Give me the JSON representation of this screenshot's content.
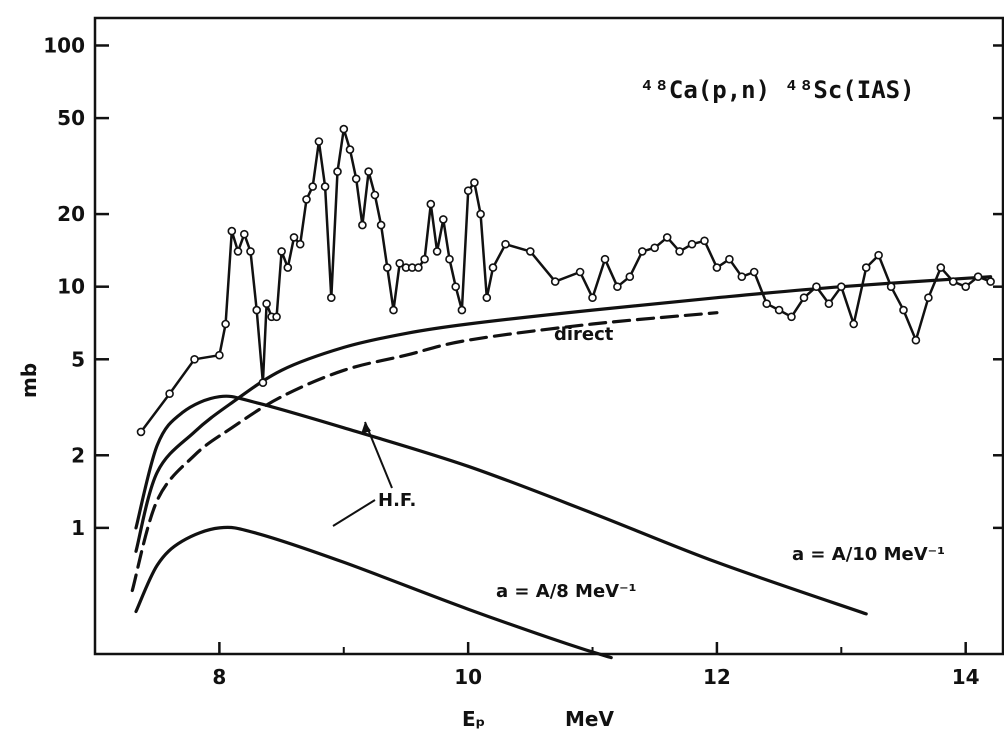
{
  "chart_data": {
    "type": "line",
    "title": "⁴⁸Ca(p,n) ⁴⁸Sc(IAS)",
    "xlabel": "Eₚ",
    "xunit": "MeV",
    "ylabel": "mb",
    "yscale": "log",
    "xlim": [
      7.0,
      14.3
    ],
    "ylim": [
      0.3,
      130
    ],
    "x_ticks": [
      8,
      10,
      12,
      14
    ],
    "x_tick_labels": [
      "8",
      "10",
      "12",
      "14"
    ],
    "y_ticks": [
      1,
      2,
      5,
      10,
      20,
      50,
      100
    ],
    "y_tick_labels": [
      "1",
      "2",
      "5",
      "10",
      "20",
      "50",
      "100"
    ],
    "grid": false,
    "annotations": {
      "direct": "direct",
      "hf": "H.F.",
      "a_upper": "a = A/10 MeV⁻¹",
      "a_lower": "a = A/8 MeV⁻¹"
    },
    "series": [
      {
        "style": "data-points",
        "points": [
          [
            7.37,
            2.5
          ],
          [
            7.6,
            3.6
          ],
          [
            7.8,
            5.0
          ],
          [
            8.0,
            5.2
          ],
          [
            8.05,
            7.0
          ],
          [
            8.1,
            17.0
          ],
          [
            8.15,
            14.0
          ],
          [
            8.2,
            16.5
          ],
          [
            8.25,
            14.0
          ],
          [
            8.3,
            8.0
          ],
          [
            8.35,
            4.0
          ],
          [
            8.38,
            8.5
          ],
          [
            8.42,
            7.5
          ],
          [
            8.46,
            7.5
          ],
          [
            8.5,
            14.0
          ],
          [
            8.55,
            12.0
          ],
          [
            8.6,
            16.0
          ],
          [
            8.65,
            15.0
          ],
          [
            8.7,
            23.0
          ],
          [
            8.75,
            26.0
          ],
          [
            8.8,
            40.0
          ],
          [
            8.85,
            26.0
          ],
          [
            8.9,
            9.0
          ],
          [
            8.95,
            30.0
          ],
          [
            9.0,
            45.0
          ],
          [
            9.05,
            37.0
          ],
          [
            9.1,
            28.0
          ],
          [
            9.15,
            18.0
          ],
          [
            9.2,
            30.0
          ],
          [
            9.25,
            24.0
          ],
          [
            9.3,
            18.0
          ],
          [
            9.35,
            12.0
          ],
          [
            9.4,
            8.0
          ],
          [
            9.45,
            12.5
          ],
          [
            9.5,
            12.0
          ],
          [
            9.55,
            12.0
          ],
          [
            9.6,
            12.0
          ],
          [
            9.65,
            13.0
          ],
          [
            9.7,
            22.0
          ],
          [
            9.75,
            14.0
          ],
          [
            9.8,
            19.0
          ],
          [
            9.85,
            13.0
          ],
          [
            9.9,
            10.0
          ],
          [
            9.95,
            8.0
          ],
          [
            10.0,
            25.0
          ],
          [
            10.05,
            27.0
          ],
          [
            10.1,
            20.0
          ],
          [
            10.15,
            9.0
          ],
          [
            10.2,
            12.0
          ],
          [
            10.3,
            15.0
          ],
          [
            10.5,
            14.0
          ],
          [
            10.7,
            10.5
          ],
          [
            10.9,
            11.5
          ],
          [
            11.0,
            9.0
          ],
          [
            11.1,
            13.0
          ],
          [
            11.2,
            10.0
          ],
          [
            11.3,
            11.0
          ],
          [
            11.4,
            14.0
          ],
          [
            11.5,
            14.5
          ],
          [
            11.6,
            16.0
          ],
          [
            11.7,
            14.0
          ],
          [
            11.8,
            15.0
          ],
          [
            11.9,
            15.5
          ],
          [
            12.0,
            12.0
          ],
          [
            12.1,
            13.0
          ],
          [
            12.2,
            11.0
          ],
          [
            12.3,
            11.5
          ],
          [
            12.4,
            8.5
          ],
          [
            12.5,
            8.0
          ],
          [
            12.6,
            7.5
          ],
          [
            12.7,
            9.0
          ],
          [
            12.8,
            10.0
          ],
          [
            12.9,
            8.5
          ],
          [
            13.0,
            10.0
          ],
          [
            13.1,
            7.0
          ],
          [
            13.2,
            12.0
          ],
          [
            13.3,
            13.5
          ],
          [
            13.4,
            10.0
          ],
          [
            13.5,
            8.0
          ],
          [
            13.6,
            6.0
          ],
          [
            13.7,
            9.0
          ],
          [
            13.8,
            12.0
          ],
          [
            13.9,
            10.5
          ],
          [
            14.0,
            10.0
          ],
          [
            14.1,
            11.0
          ],
          [
            14.2,
            10.5
          ]
        ]
      },
      {
        "label": "direct (solid)",
        "style": "solid",
        "points": [
          [
            7.33,
            0.8
          ],
          [
            7.5,
            1.7
          ],
          [
            7.8,
            2.5
          ],
          [
            8.1,
            3.3
          ],
          [
            8.5,
            4.5
          ],
          [
            9.0,
            5.6
          ],
          [
            9.5,
            6.4
          ],
          [
            10.0,
            7.0
          ],
          [
            11.0,
            8.0
          ],
          [
            12.0,
            9.0
          ],
          [
            13.0,
            10.0
          ],
          [
            14.2,
            11.0
          ]
        ]
      },
      {
        "label": "direct (dashed)",
        "style": "dashed",
        "points": [
          [
            7.3,
            0.55
          ],
          [
            7.5,
            1.3
          ],
          [
            7.8,
            2.0
          ],
          [
            8.1,
            2.6
          ],
          [
            8.5,
            3.5
          ],
          [
            9.0,
            4.5
          ],
          [
            9.5,
            5.2
          ],
          [
            10.0,
            6.0
          ],
          [
            11.0,
            7.0
          ],
          [
            12.0,
            7.8
          ]
        ]
      },
      {
        "label": "H.F. a = A/10",
        "style": "solid",
        "points": [
          [
            7.33,
            1.0
          ],
          [
            7.5,
            2.2
          ],
          [
            7.7,
            3.0
          ],
          [
            8.0,
            3.5
          ],
          [
            8.3,
            3.3
          ],
          [
            9.0,
            2.6
          ],
          [
            10.0,
            1.8
          ],
          [
            11.0,
            1.15
          ],
          [
            12.0,
            0.72
          ],
          [
            13.2,
            0.44
          ]
        ]
      },
      {
        "label": "H.F. a = A/8",
        "style": "solid",
        "points": [
          [
            7.33,
            0.45
          ],
          [
            7.5,
            0.7
          ],
          [
            7.7,
            0.88
          ],
          [
            8.0,
            1.0
          ],
          [
            8.3,
            0.95
          ],
          [
            9.0,
            0.72
          ],
          [
            10.0,
            0.46
          ],
          [
            10.8,
            0.33
          ],
          [
            11.15,
            0.29
          ]
        ]
      }
    ]
  }
}
